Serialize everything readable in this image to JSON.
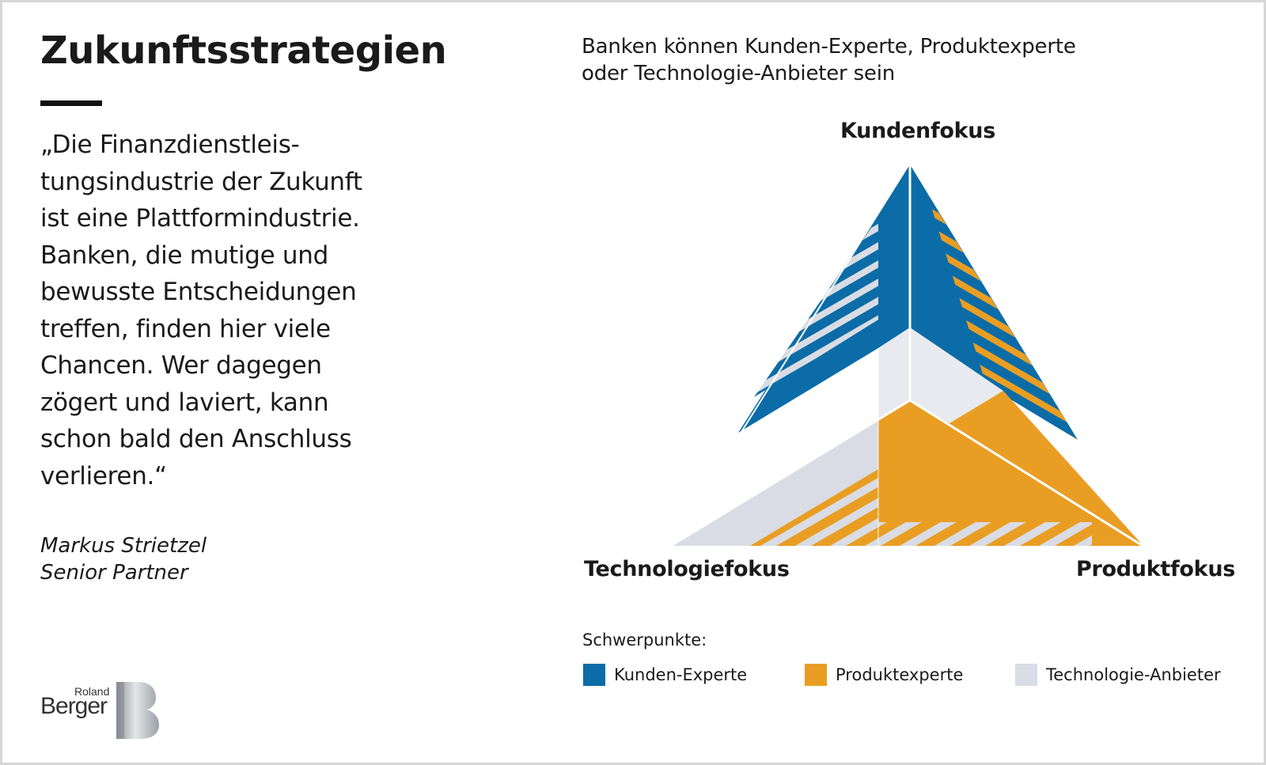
{
  "left_panel": {
    "title": "Zukunftsstrategien",
    "quote_lines": [
      "„Die Finanzdienstleis-",
      "tungsindustrie der Zukunft",
      "ist eine Plattformindustrie.",
      "Banken, die mutige und",
      "bewusste Entscheidungen",
      "treffen, finden hier viele",
      "Chancen. Wer dagegen",
      "zögert und laviert, kann",
      "schon bald den Anschluss",
      "verlieren.“"
    ],
    "author": "Markus Strietzel",
    "role": "Senior Partner",
    "logo": {
      "line1": "Roland",
      "line2": "Berger",
      "mark": "B"
    }
  },
  "diagram": {
    "subtitle_lines": [
      "Banken können Kunden-Experte, Produktexperte",
      "oder Technologie-Anbieter sein"
    ],
    "vertices": {
      "top": "Kundenfokus",
      "left": "Technologiefokus",
      "right": "Produktfokus"
    },
    "legend_title": "Schwerpunkte:",
    "legend": [
      {
        "label": "Kunden-Experte",
        "color": "#0b6ca7"
      },
      {
        "label": "Produktexperte",
        "color": "#e99e23"
      },
      {
        "label": "Technologie-Anbieter",
        "color": "#d9dce4"
      }
    ]
  }
}
